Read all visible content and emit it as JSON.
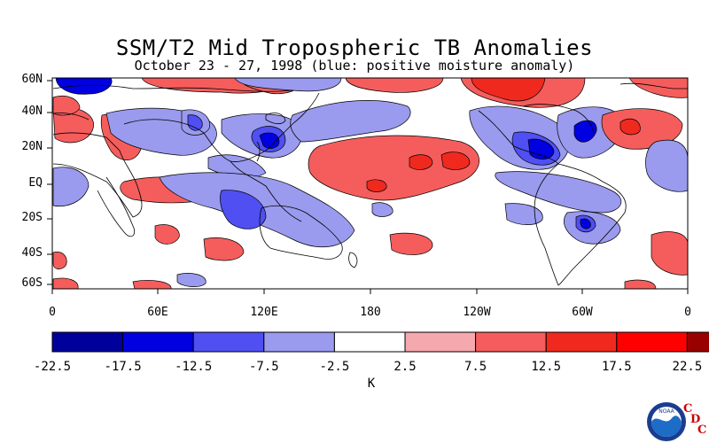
{
  "title": "SSM/T2 Mid Tropospheric TB Anomalies",
  "subtitle": "October 23 - 27, 1998 (blue: positive moisture anomaly)",
  "lat_labels": [
    "60N",
    "40N",
    "20N",
    "EQ",
    "20S",
    "40S",
    "60S"
  ],
  "lon_labels": [
    "0",
    "60E",
    "120E",
    "180",
    "120W",
    "60W",
    "0"
  ],
  "colorbar": {
    "labels": [
      "-22.5",
      "-17.5",
      "-12.5",
      "-7.5",
      "-2.5",
      "2.5",
      "7.5",
      "12.5",
      "17.5",
      "22.5"
    ],
    "colors": [
      "#00009a",
      "#0000e0",
      "#4f4ff2",
      "#9a9aee",
      "#ffffff",
      "#f5a8ae",
      "#f55d5d",
      "#f0291f",
      "#ff0000",
      "#990000"
    ],
    "units": "K"
  },
  "logo": {
    "text": "NOAA",
    "letters": [
      "C",
      "D",
      "C"
    ]
  }
}
